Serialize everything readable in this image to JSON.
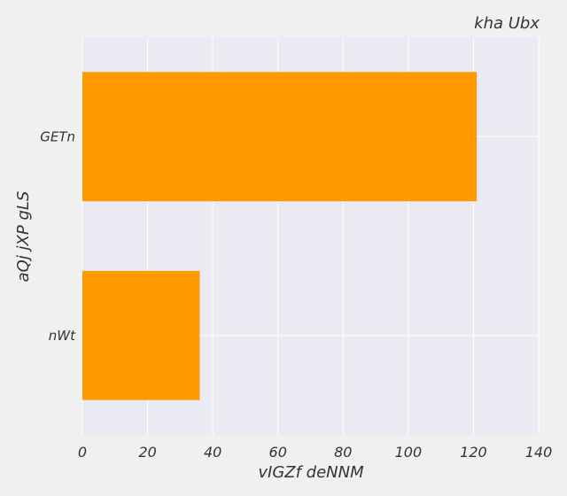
{
  "chart_data": {
    "type": "bar",
    "orientation": "horizontal",
    "title": "kha Ubx",
    "xlabel": "vIGZf deNNM",
    "ylabel": "aQj jXP gLS",
    "categories": [
      "GETn",
      "nWt"
    ],
    "values": [
      121,
      36
    ],
    "xlim": [
      0,
      140
    ],
    "xticks": [
      "0",
      "20",
      "40",
      "60",
      "80",
      "100",
      "120",
      "140"
    ],
    "grid": true,
    "bar_color": "#ff9900",
    "plot_background": "#eaeaf2",
    "background": "#f0f0f0"
  }
}
